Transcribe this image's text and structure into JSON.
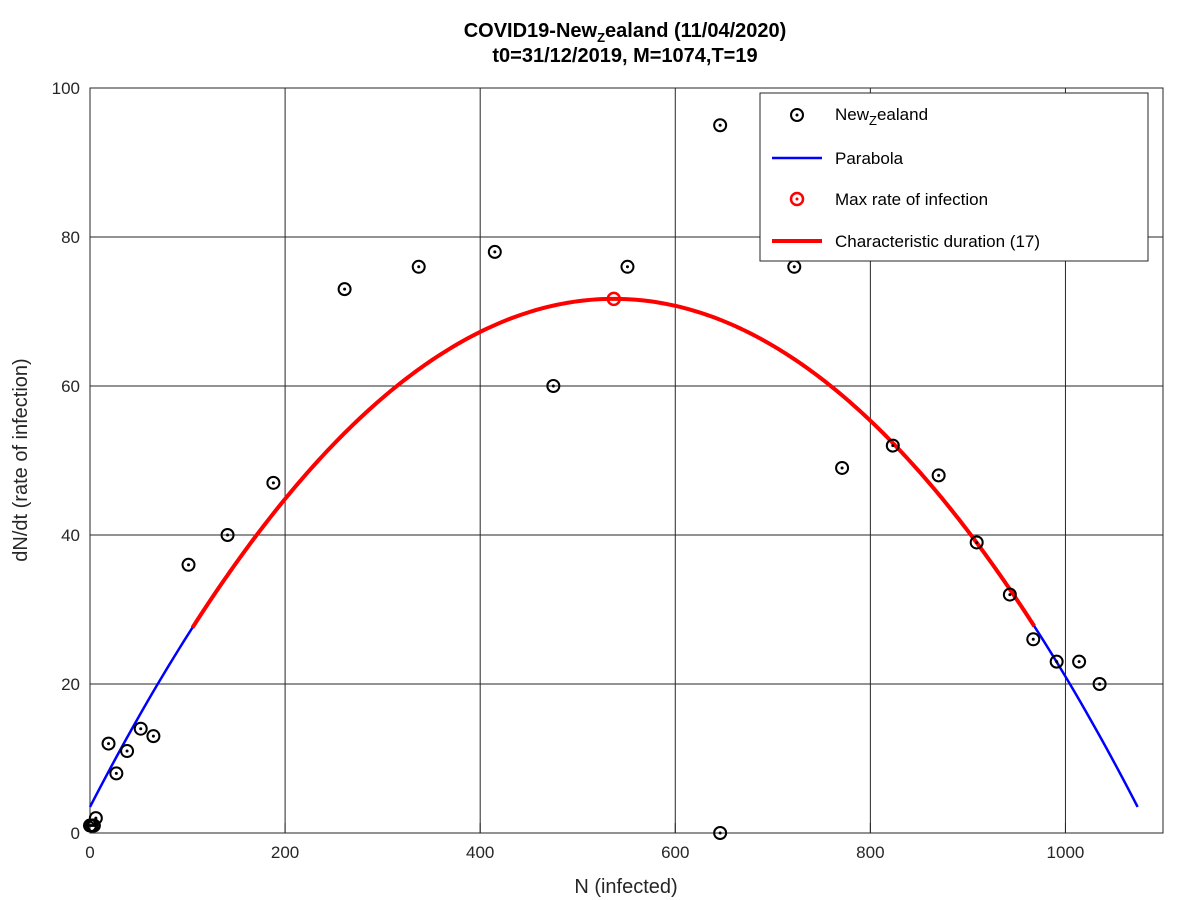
{
  "chart_data": {
    "type": "scatter",
    "title_main": "COVID19-New",
    "title_sub": "Z",
    "title_tail": "ealand (11/04/2020)",
    "subtitle": "t0=31/12/2019, M=1074,T=19",
    "xlabel": "N (infected)",
    "ylabel": "dN/dt (rate of infection)",
    "xlim": [
      0,
      1100
    ],
    "ylim": [
      0,
      100
    ],
    "xticks": [
      0,
      200,
      400,
      600,
      800,
      1000
    ],
    "yticks": [
      0,
      20,
      40,
      60,
      80,
      100
    ],
    "grid": true,
    "legend_position": "top-right",
    "legend": {
      "points_main": "New",
      "points_sub": "Z",
      "points_tail": "ealand",
      "parabola": "Parabola",
      "max_rate": "Max rate of infection",
      "duration": "Characteristic duration (17)"
    },
    "points": [
      {
        "x": 0,
        "y": 1
      },
      {
        "x": 2,
        "y": 1
      },
      {
        "x": 4,
        "y": 1
      },
      {
        "x": 6,
        "y": 2
      },
      {
        "x": 19,
        "y": 12
      },
      {
        "x": 27,
        "y": 8
      },
      {
        "x": 38,
        "y": 11
      },
      {
        "x": 52,
        "y": 14
      },
      {
        "x": 65,
        "y": 13
      },
      {
        "x": 101,
        "y": 36
      },
      {
        "x": 141,
        "y": 40
      },
      {
        "x": 188,
        "y": 47
      },
      {
        "x": 261,
        "y": 73
      },
      {
        "x": 337,
        "y": 76
      },
      {
        "x": 415,
        "y": 78
      },
      {
        "x": 475,
        "y": 60
      },
      {
        "x": 551,
        "y": 76
      },
      {
        "x": 646,
        "y": 95
      },
      {
        "x": 646,
        "y": 0
      },
      {
        "x": 722,
        "y": 76
      },
      {
        "x": 771,
        "y": 49
      },
      {
        "x": 823,
        "y": 52
      },
      {
        "x": 870,
        "y": 48
      },
      {
        "x": 909,
        "y": 39
      },
      {
        "x": 943,
        "y": 32
      },
      {
        "x": 967,
        "y": 26
      },
      {
        "x": 991,
        "y": 23
      },
      {
        "x": 1014,
        "y": 23
      },
      {
        "x": 1035,
        "y": 20
      }
    ],
    "parabola": {
      "x_start": 0,
      "x_end": 1074,
      "vertex_x": 537,
      "vertex_y": 71.7,
      "y_at_ends": 3.5
    },
    "max_rate_point": {
      "x": 537,
      "y": 71.7
    },
    "duration_range": [
      105,
      968
    ],
    "colors": {
      "points": "#000000",
      "parabola": "#0000ff",
      "max_rate": "#ff0000",
      "duration": "#ff0000"
    }
  }
}
